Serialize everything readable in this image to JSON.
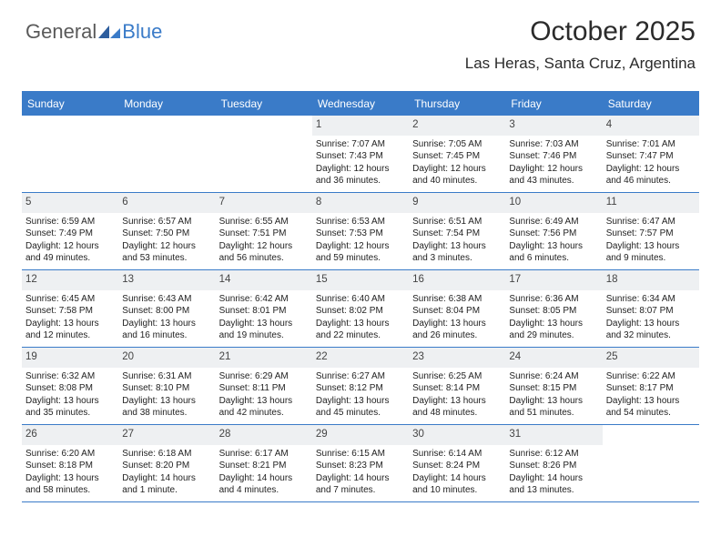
{
  "logo": {
    "text1": "General",
    "text2": "Blue"
  },
  "title": "October 2025",
  "subtitle": "Las Heras, Santa Cruz, Argentina",
  "dayNames": [
    "Sunday",
    "Monday",
    "Tuesday",
    "Wednesday",
    "Thursday",
    "Friday",
    "Saturday"
  ],
  "colors": {
    "accent": "#3a7bc8",
    "numBg": "#eef0f2"
  },
  "weeks": [
    [
      {
        "n": "",
        "empty": true
      },
      {
        "n": "",
        "empty": true
      },
      {
        "n": "",
        "empty": true
      },
      {
        "n": "1",
        "sr": "Sunrise: 7:07 AM",
        "ss": "Sunset: 7:43 PM",
        "dl": "Daylight: 12 hours and 36 minutes."
      },
      {
        "n": "2",
        "sr": "Sunrise: 7:05 AM",
        "ss": "Sunset: 7:45 PM",
        "dl": "Daylight: 12 hours and 40 minutes."
      },
      {
        "n": "3",
        "sr": "Sunrise: 7:03 AM",
        "ss": "Sunset: 7:46 PM",
        "dl": "Daylight: 12 hours and 43 minutes."
      },
      {
        "n": "4",
        "sr": "Sunrise: 7:01 AM",
        "ss": "Sunset: 7:47 PM",
        "dl": "Daylight: 12 hours and 46 minutes."
      }
    ],
    [
      {
        "n": "5",
        "sr": "Sunrise: 6:59 AM",
        "ss": "Sunset: 7:49 PM",
        "dl": "Daylight: 12 hours and 49 minutes."
      },
      {
        "n": "6",
        "sr": "Sunrise: 6:57 AM",
        "ss": "Sunset: 7:50 PM",
        "dl": "Daylight: 12 hours and 53 minutes."
      },
      {
        "n": "7",
        "sr": "Sunrise: 6:55 AM",
        "ss": "Sunset: 7:51 PM",
        "dl": "Daylight: 12 hours and 56 minutes."
      },
      {
        "n": "8",
        "sr": "Sunrise: 6:53 AM",
        "ss": "Sunset: 7:53 PM",
        "dl": "Daylight: 12 hours and 59 minutes."
      },
      {
        "n": "9",
        "sr": "Sunrise: 6:51 AM",
        "ss": "Sunset: 7:54 PM",
        "dl": "Daylight: 13 hours and 3 minutes."
      },
      {
        "n": "10",
        "sr": "Sunrise: 6:49 AM",
        "ss": "Sunset: 7:56 PM",
        "dl": "Daylight: 13 hours and 6 minutes."
      },
      {
        "n": "11",
        "sr": "Sunrise: 6:47 AM",
        "ss": "Sunset: 7:57 PM",
        "dl": "Daylight: 13 hours and 9 minutes."
      }
    ],
    [
      {
        "n": "12",
        "sr": "Sunrise: 6:45 AM",
        "ss": "Sunset: 7:58 PM",
        "dl": "Daylight: 13 hours and 12 minutes."
      },
      {
        "n": "13",
        "sr": "Sunrise: 6:43 AM",
        "ss": "Sunset: 8:00 PM",
        "dl": "Daylight: 13 hours and 16 minutes."
      },
      {
        "n": "14",
        "sr": "Sunrise: 6:42 AM",
        "ss": "Sunset: 8:01 PM",
        "dl": "Daylight: 13 hours and 19 minutes."
      },
      {
        "n": "15",
        "sr": "Sunrise: 6:40 AM",
        "ss": "Sunset: 8:02 PM",
        "dl": "Daylight: 13 hours and 22 minutes."
      },
      {
        "n": "16",
        "sr": "Sunrise: 6:38 AM",
        "ss": "Sunset: 8:04 PM",
        "dl": "Daylight: 13 hours and 26 minutes."
      },
      {
        "n": "17",
        "sr": "Sunrise: 6:36 AM",
        "ss": "Sunset: 8:05 PM",
        "dl": "Daylight: 13 hours and 29 minutes."
      },
      {
        "n": "18",
        "sr": "Sunrise: 6:34 AM",
        "ss": "Sunset: 8:07 PM",
        "dl": "Daylight: 13 hours and 32 minutes."
      }
    ],
    [
      {
        "n": "19",
        "sr": "Sunrise: 6:32 AM",
        "ss": "Sunset: 8:08 PM",
        "dl": "Daylight: 13 hours and 35 minutes."
      },
      {
        "n": "20",
        "sr": "Sunrise: 6:31 AM",
        "ss": "Sunset: 8:10 PM",
        "dl": "Daylight: 13 hours and 38 minutes."
      },
      {
        "n": "21",
        "sr": "Sunrise: 6:29 AM",
        "ss": "Sunset: 8:11 PM",
        "dl": "Daylight: 13 hours and 42 minutes."
      },
      {
        "n": "22",
        "sr": "Sunrise: 6:27 AM",
        "ss": "Sunset: 8:12 PM",
        "dl": "Daylight: 13 hours and 45 minutes."
      },
      {
        "n": "23",
        "sr": "Sunrise: 6:25 AM",
        "ss": "Sunset: 8:14 PM",
        "dl": "Daylight: 13 hours and 48 minutes."
      },
      {
        "n": "24",
        "sr": "Sunrise: 6:24 AM",
        "ss": "Sunset: 8:15 PM",
        "dl": "Daylight: 13 hours and 51 minutes."
      },
      {
        "n": "25",
        "sr": "Sunrise: 6:22 AM",
        "ss": "Sunset: 8:17 PM",
        "dl": "Daylight: 13 hours and 54 minutes."
      }
    ],
    [
      {
        "n": "26",
        "sr": "Sunrise: 6:20 AM",
        "ss": "Sunset: 8:18 PM",
        "dl": "Daylight: 13 hours and 58 minutes."
      },
      {
        "n": "27",
        "sr": "Sunrise: 6:18 AM",
        "ss": "Sunset: 8:20 PM",
        "dl": "Daylight: 14 hours and 1 minute."
      },
      {
        "n": "28",
        "sr": "Sunrise: 6:17 AM",
        "ss": "Sunset: 8:21 PM",
        "dl": "Daylight: 14 hours and 4 minutes."
      },
      {
        "n": "29",
        "sr": "Sunrise: 6:15 AM",
        "ss": "Sunset: 8:23 PM",
        "dl": "Daylight: 14 hours and 7 minutes."
      },
      {
        "n": "30",
        "sr": "Sunrise: 6:14 AM",
        "ss": "Sunset: 8:24 PM",
        "dl": "Daylight: 14 hours and 10 minutes."
      },
      {
        "n": "31",
        "sr": "Sunrise: 6:12 AM",
        "ss": "Sunset: 8:26 PM",
        "dl": "Daylight: 14 hours and 13 minutes."
      },
      {
        "n": "",
        "empty": true
      }
    ]
  ]
}
